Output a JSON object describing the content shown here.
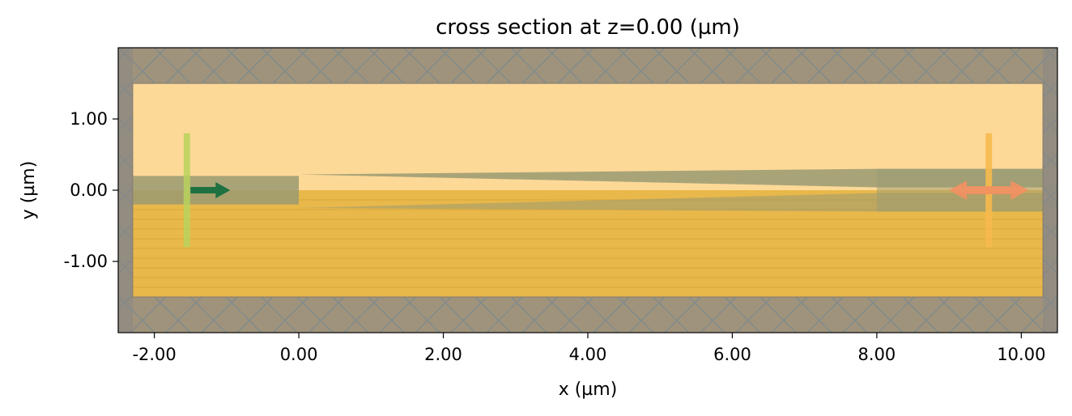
{
  "chart_data": {
    "type": "simulation-cross-section",
    "title": "cross section at z=0.00 (µm)",
    "xlabel": "x (µm)",
    "ylabel": "y (µm)",
    "xlim": [
      -2.5,
      10.5
    ],
    "ylim": [
      -2.0,
      2.0
    ],
    "xticks": [
      -2,
      0,
      2,
      4,
      6,
      8,
      10
    ],
    "xtick_labels": [
      "-2.00",
      "0.00",
      "2.00",
      "4.00",
      "6.00",
      "8.00",
      "10.00"
    ],
    "yticks": [
      1,
      0,
      -1
    ],
    "ytick_labels": [
      "1.00",
      "0.00",
      "-1.00"
    ],
    "grid": false,
    "colors": {
      "cladding": "#fdd998",
      "substrate": "#e9b84a",
      "waveguide": "#9a9a72",
      "pml": "#a0937c",
      "source": "#0f6b3c",
      "monitor": "#f39062"
    },
    "regions": {
      "simulation_domain": {
        "x": [
          -2.3,
          10.3
        ],
        "y": [
          -1.5,
          1.5
        ]
      },
      "pml_top": {
        "x": [
          -2.5,
          10.5
        ],
        "y": [
          1.5,
          2.0
        ]
      },
      "pml_bottom": {
        "x": [
          -2.5,
          10.5
        ],
        "y": [
          -2.0,
          -1.5
        ]
      },
      "pml_left": {
        "x": [
          -2.5,
          -2.3
        ],
        "y": [
          -2.0,
          2.0
        ]
      },
      "pml_right": {
        "x": [
          10.3,
          10.5
        ],
        "y": [
          -2.0,
          2.0
        ]
      },
      "cladding": {
        "x": [
          -2.3,
          10.3
        ],
        "y": [
          0.0,
          1.5
        ]
      },
      "substrate": {
        "x": [
          -2.3,
          10.3
        ],
        "y": [
          -1.5,
          0.0
        ]
      },
      "waveguide_input": {
        "x": [
          -2.5,
          0.0
        ],
        "y": [
          -0.2,
          0.2
        ]
      },
      "waveguide_output": {
        "x": [
          8.0,
          10.5
        ],
        "y": [
          -0.3,
          0.3
        ]
      },
      "taper_upper": [
        [
          0.0,
          0.22
        ],
        [
          8.0,
          0.3
        ],
        [
          10.5,
          0.3
        ],
        [
          10.5,
          0.04
        ],
        [
          8.0,
          0.04
        ]
      ],
      "taper_lower": [
        [
          0.0,
          -0.25
        ],
        [
          8.0,
          -0.3
        ],
        [
          10.5,
          -0.3
        ],
        [
          10.5,
          -0.04
        ],
        [
          8.0,
          -0.04
        ]
      ]
    },
    "source": {
      "x": -1.55,
      "y_range": [
        -0.8,
        0.8
      ],
      "direction": "+x",
      "arrow_x": [
        -1.5,
        -0.95
      ]
    },
    "monitor": {
      "x": 9.55,
      "y_range": [
        -0.8,
        0.8
      ],
      "arrow_x": [
        9.0,
        10.1
      ],
      "direction": "both"
    }
  }
}
